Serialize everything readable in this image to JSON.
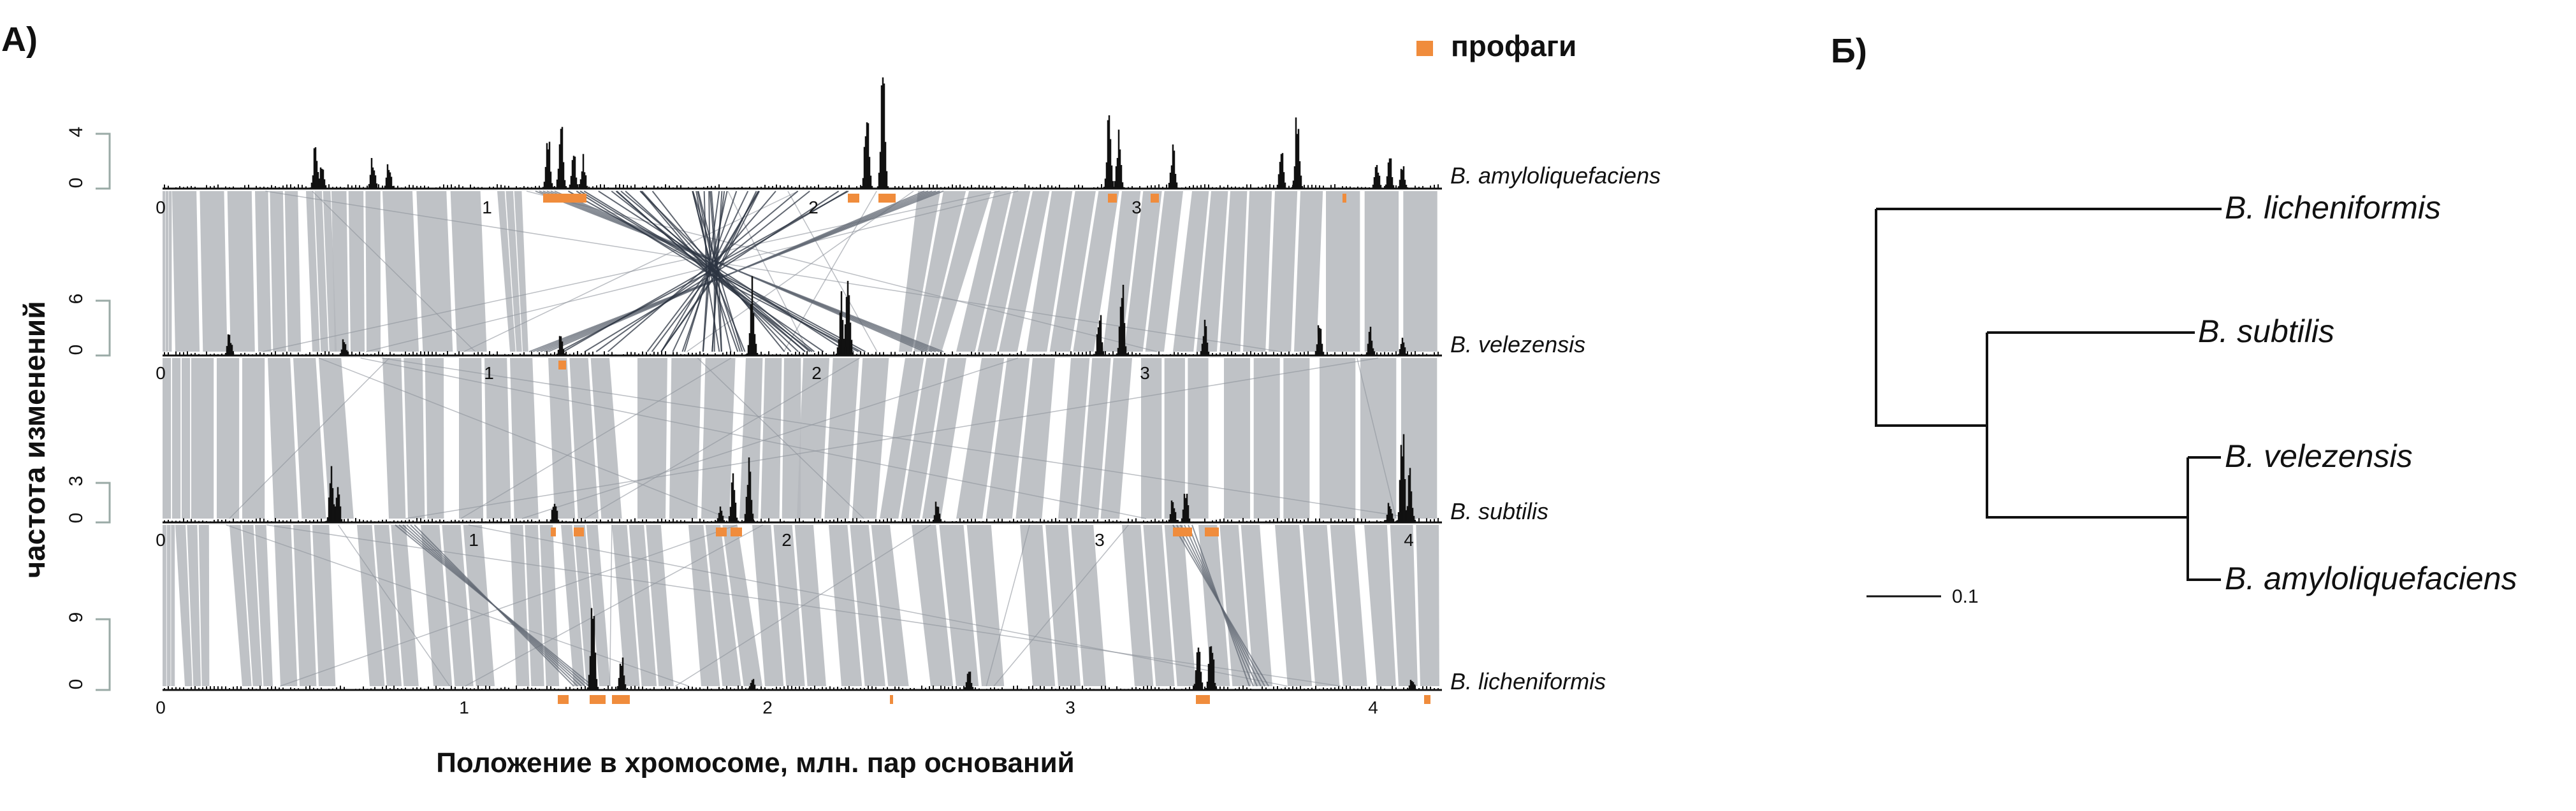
{
  "panel_a": {
    "label": "A)",
    "legend_label": "профаги",
    "y_axis_label": "частота изменений",
    "x_axis_label": "Положение в хромосоме, млн. пар оснований",
    "tracks": [
      {
        "name": "B. amyloliquefaciens",
        "y_ticks": [
          "4",
          "0"
        ],
        "x_ticks": [
          "0",
          "1",
          "2",
          "3"
        ]
      },
      {
        "name": "B. velezensis",
        "y_ticks": [
          "6",
          "0"
        ],
        "x_ticks": [
          "0",
          "1",
          "2",
          "3"
        ]
      },
      {
        "name": "B. subtilis",
        "y_ticks": [
          "3",
          "0"
        ],
        "x_ticks": [
          "0",
          "1",
          "2",
          "3",
          "4"
        ]
      },
      {
        "name": "B. licheniformis",
        "y_ticks": [
          "9",
          "0"
        ],
        "x_ticks": [
          "0",
          "1",
          "2",
          "3",
          "4"
        ]
      }
    ]
  },
  "panel_b": {
    "label": "Б)",
    "leaves": [
      "B. licheniformis",
      "B. subtilis",
      "B. velezensis",
      "B. amyloliquefaciens"
    ],
    "scale_label": "0.1"
  },
  "colors": {
    "prophage": "#f08c3c",
    "synteny": "#b4b7bc",
    "inversion": "#2c3442",
    "histogram": "#111111",
    "bracket": "#9aaaa6"
  }
}
